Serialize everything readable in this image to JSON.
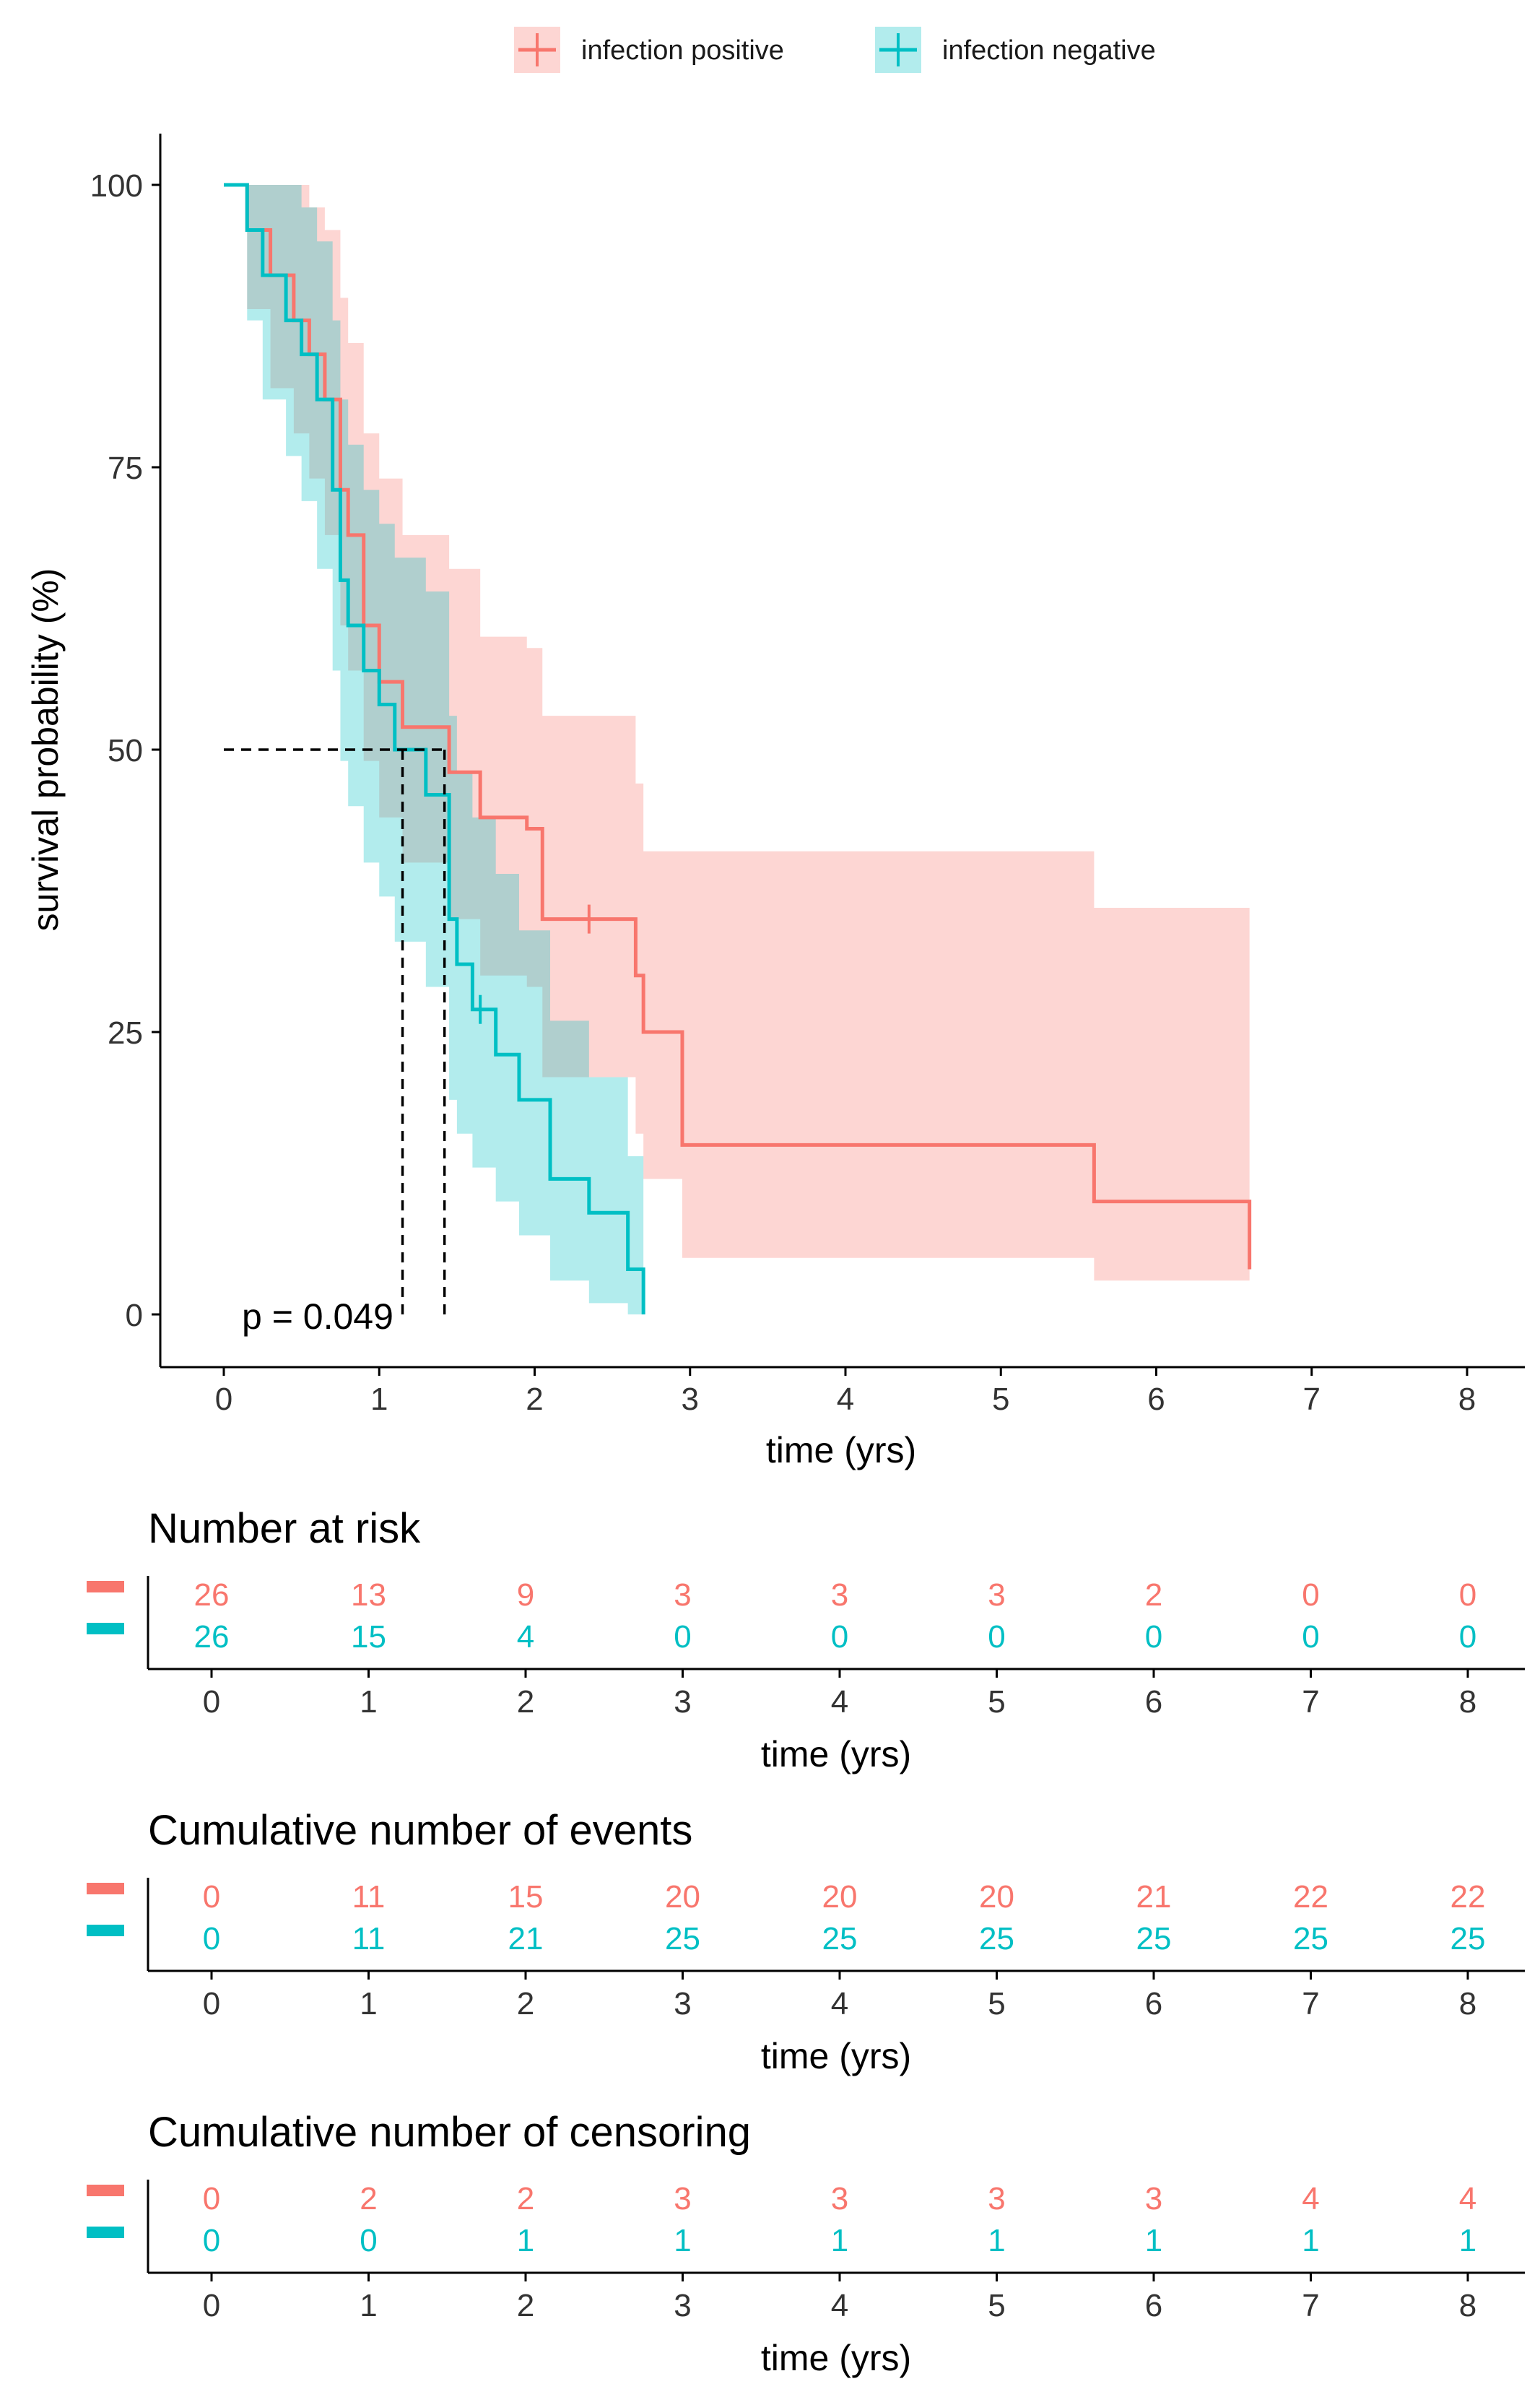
{
  "colors": {
    "positive": "#F8766D",
    "negative": "#00BFC4",
    "axis": "#000000"
  },
  "legend": {
    "positive_label": "infection positive",
    "negative_label": "infection negative"
  },
  "chart_data": {
    "type": "line",
    "title": "",
    "xlabel": "time (yrs)",
    "ylabel": "survival probability (%)",
    "xlim": [
      0,
      8
    ],
    "ylim": [
      0,
      100
    ],
    "x_ticks": [
      0,
      1,
      2,
      3,
      4,
      5,
      6,
      7,
      8
    ],
    "y_ticks": [
      0,
      25,
      50,
      75,
      100
    ],
    "grid": false,
    "legend_position": "top",
    "annotation": "p = 0.049",
    "median_lines": {
      "level": 50,
      "median_negative": 1.15,
      "median_positive": 1.42
    },
    "series": [
      {
        "name": "infection positive",
        "color": "#F8766D",
        "x": [
          0,
          0.15,
          0.3,
          0.45,
          0.55,
          0.65,
          0.75,
          0.8,
          0.9,
          1.0,
          1.15,
          1.45,
          1.65,
          1.95,
          2.05,
          2.65,
          2.7,
          2.95,
          5.6,
          6.6
        ],
        "y": [
          100,
          96,
          92,
          88,
          85,
          81,
          73,
          69,
          61,
          56,
          52,
          48,
          44,
          43,
          35,
          30,
          25,
          15,
          10,
          4
        ],
        "lower": [
          100,
          89,
          82,
          78,
          74,
          69,
          61,
          57,
          49,
          44,
          40,
          35,
          30,
          29,
          21,
          16,
          12,
          5,
          3,
          2
        ],
        "upper": [
          100,
          100,
          100,
          100,
          98,
          96,
          90,
          86,
          78,
          74,
          69,
          66,
          60,
          59,
          53,
          47,
          41,
          41,
          36,
          36
        ],
        "censor_x": [
          2.35
        ],
        "censor_y": [
          35
        ]
      },
      {
        "name": "infection negative",
        "color": "#00BFC4",
        "x": [
          0,
          0.15,
          0.25,
          0.4,
          0.5,
          0.6,
          0.7,
          0.75,
          0.8,
          0.9,
          1.0,
          1.1,
          1.3,
          1.45,
          1.5,
          1.6,
          1.75,
          1.9,
          2.1,
          2.35,
          2.6,
          2.7
        ],
        "y": [
          100,
          96,
          92,
          88,
          85,
          81,
          73,
          65,
          61,
          57,
          54,
          50,
          46,
          35,
          31,
          27,
          23,
          19,
          12,
          9,
          4,
          0
        ],
        "lower": [
          100,
          88,
          81,
          76,
          72,
          66,
          57,
          49,
          45,
          40,
          37,
          33,
          29,
          19,
          16,
          13,
          10,
          7,
          3,
          1,
          0,
          0
        ],
        "upper": [
          100,
          100,
          100,
          100,
          98,
          95,
          88,
          81,
          77,
          73,
          70,
          67,
          64,
          53,
          48,
          44,
          39,
          34,
          26,
          21,
          14,
          14
        ],
        "censor_x": [
          1.65
        ],
        "censor_y": [
          27
        ]
      }
    ]
  },
  "tables": [
    {
      "title": "Number at risk",
      "xlabel": "time (yrs)",
      "positive": [
        "26",
        "13",
        "9",
        "3",
        "3",
        "3",
        "2",
        "0",
        "0"
      ],
      "negative": [
        "26",
        "15",
        "4",
        "0",
        "0",
        "0",
        "0",
        "0",
        "0"
      ]
    },
    {
      "title": "Cumulative number of events",
      "xlabel": "time (yrs)",
      "positive": [
        "0",
        "11",
        "15",
        "20",
        "20",
        "20",
        "21",
        "22",
        "22"
      ],
      "negative": [
        "0",
        "11",
        "21",
        "25",
        "25",
        "25",
        "25",
        "25",
        "25"
      ]
    },
    {
      "title": "Cumulative number of censoring",
      "xlabel": "time (yrs)",
      "positive": [
        "0",
        "2",
        "2",
        "3",
        "3",
        "3",
        "3",
        "4",
        "4"
      ],
      "negative": [
        "0",
        "0",
        "1",
        "1",
        "1",
        "1",
        "1",
        "1",
        "1"
      ]
    }
  ]
}
